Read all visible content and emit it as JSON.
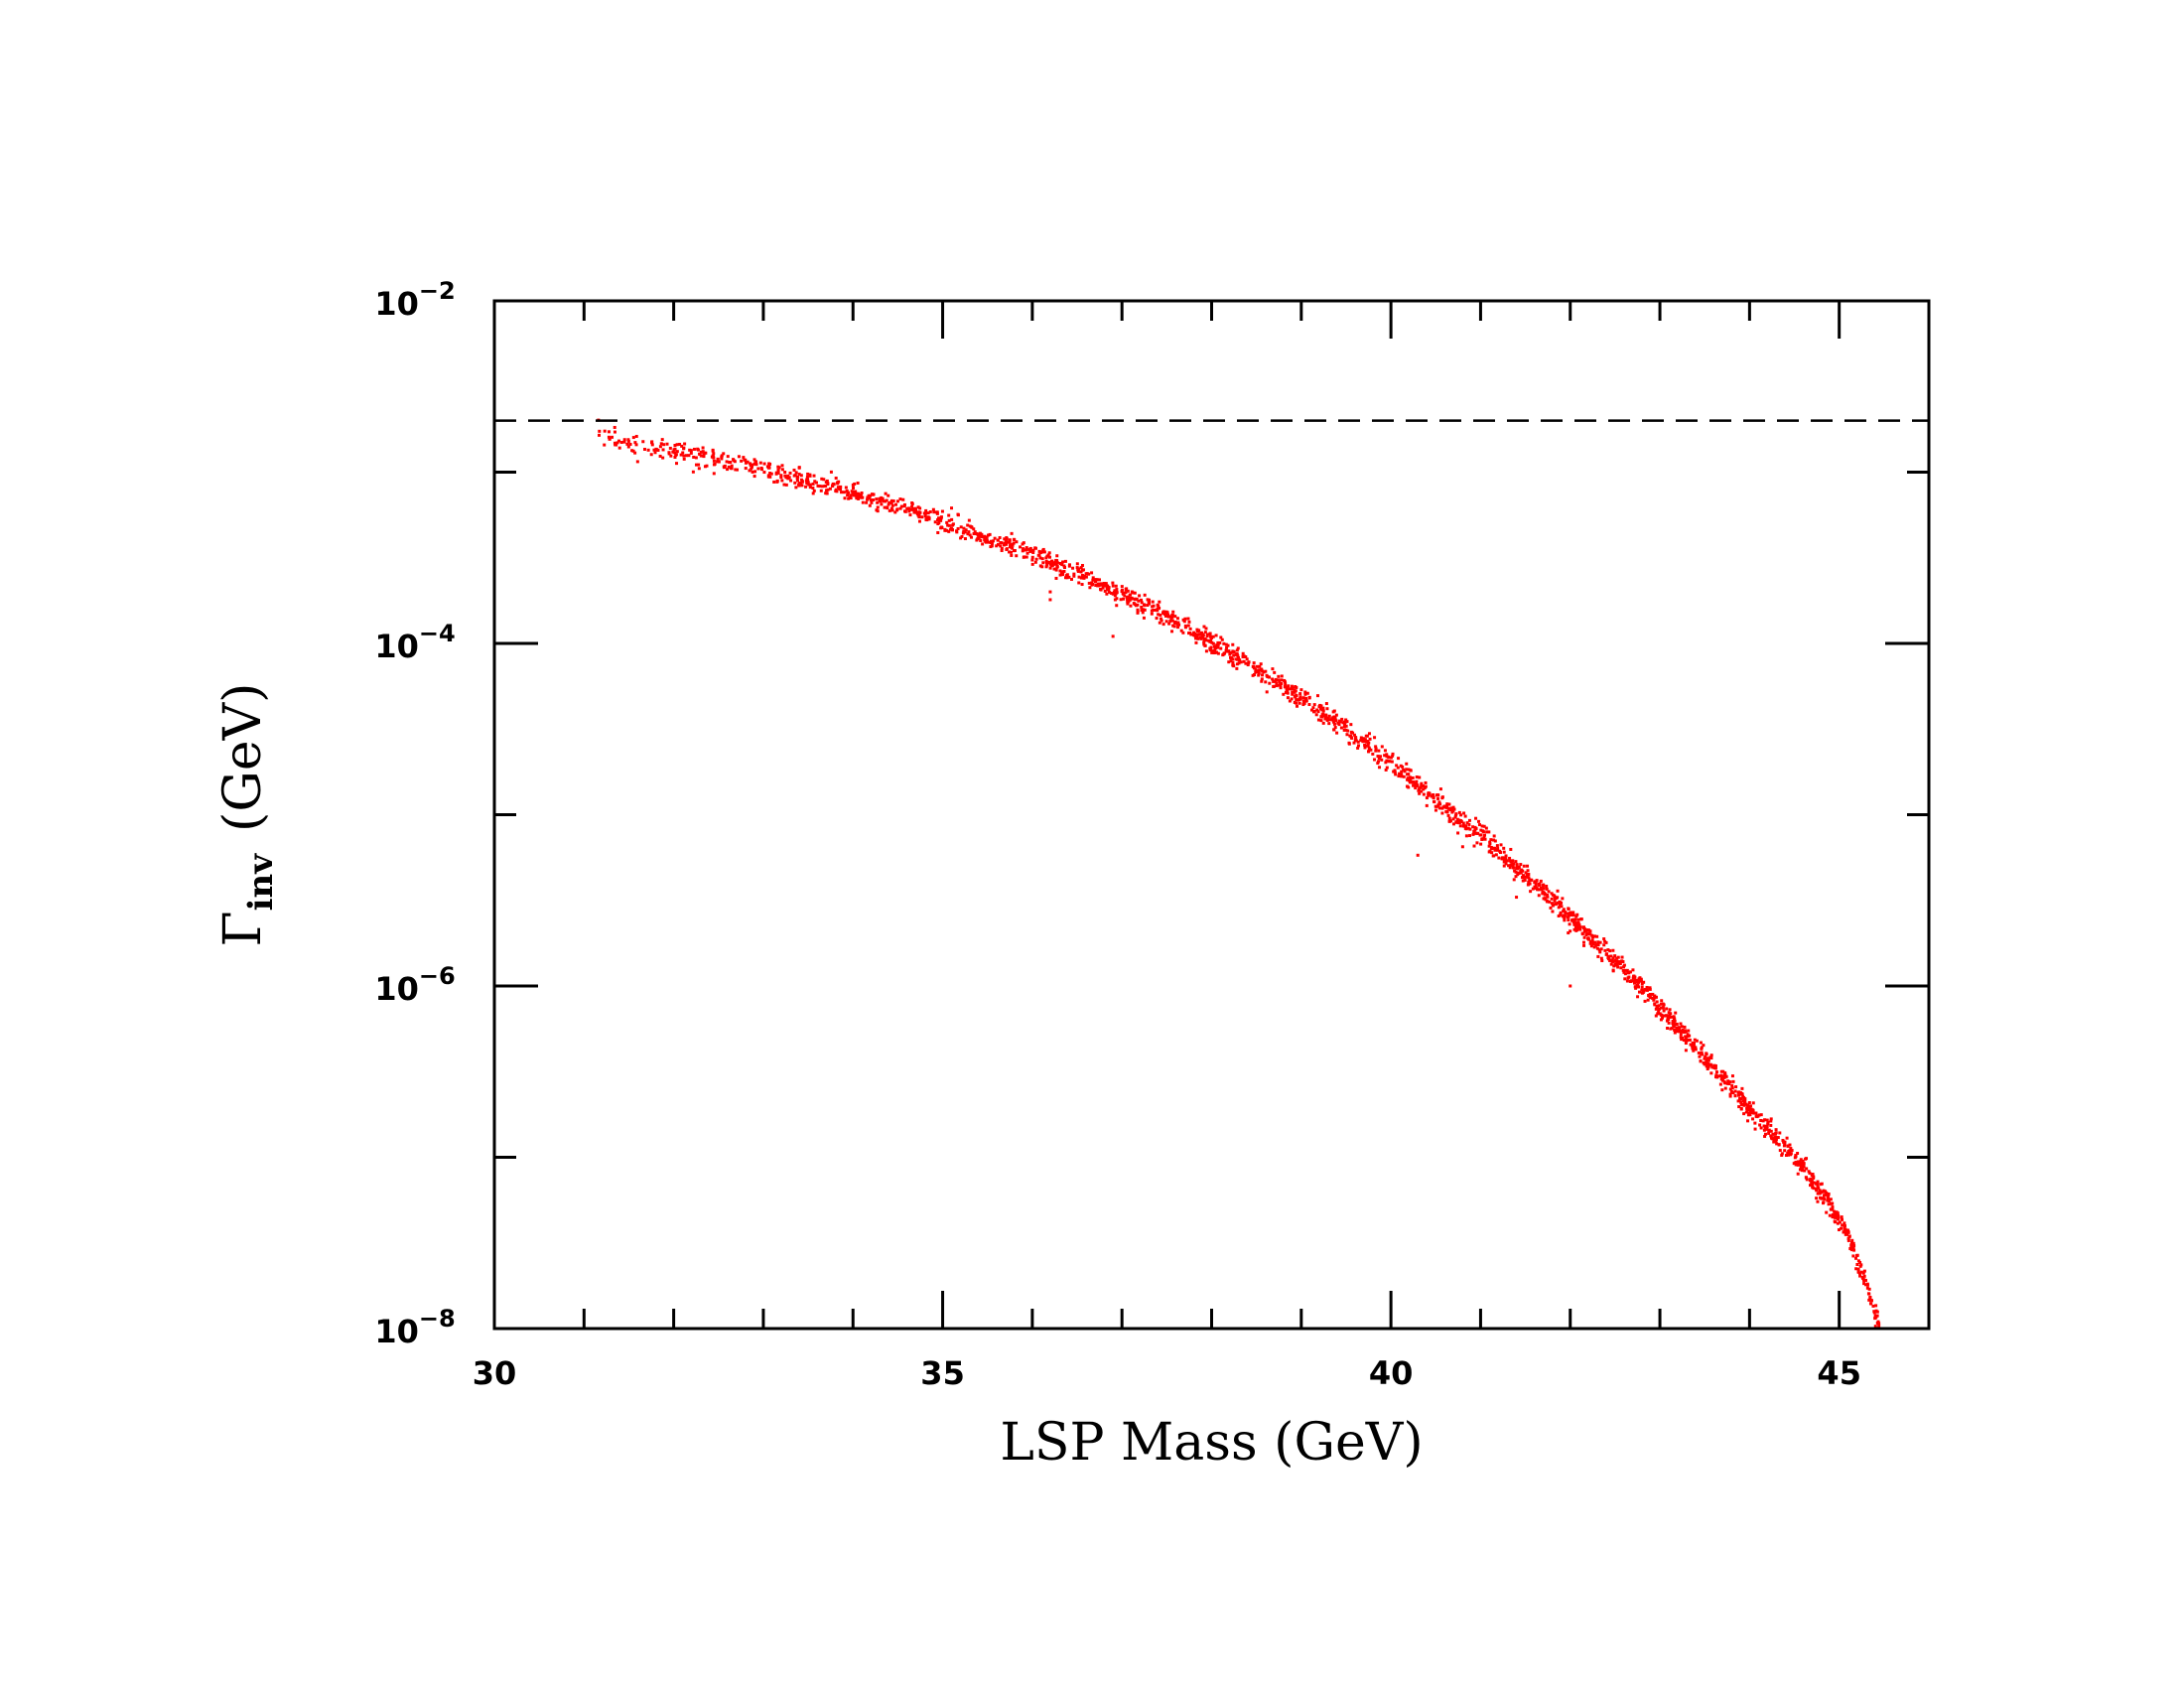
{
  "chart_data": {
    "type": "scatter",
    "title": "",
    "xlabel": "LSP Mass (GeV)",
    "ylabel": {
      "symbol": "Γ",
      "subscript": "inv",
      "unit": "(GeV)"
    },
    "xlim": [
      30,
      46
    ],
    "ylim": [
      1e-08,
      0.01
    ],
    "yscale": "log",
    "grid": false,
    "legend": "none",
    "x_ticks": [
      "30",
      "35",
      "40",
      "45"
    ],
    "y_ticks": [
      {
        "base": "10",
        "exp": "−8",
        "value": 1e-08
      },
      {
        "base": "10",
        "exp": "−6",
        "value": 1e-06
      },
      {
        "base": "10",
        "exp": "−4",
        "value": 0.0001
      },
      {
        "base": "10",
        "exp": "−2",
        "value": 0.01
      }
    ],
    "reference_line": {
      "y": 0.002,
      "style": "dashed",
      "color": "#000000"
    },
    "series": [
      {
        "color": "#ff0000",
        "band_spread_decades": 0.03,
        "x": [
          31.1,
          31.5,
          32.0,
          32.5,
          33.0,
          33.5,
          34.0,
          34.5,
          35.0,
          35.5,
          36.0,
          36.5,
          37.0,
          37.5,
          38.0,
          38.5,
          39.0,
          39.5,
          40.0,
          40.5,
          41.0,
          41.5,
          42.0,
          42.5,
          43.0,
          43.5,
          44.0,
          44.3,
          44.6,
          44.9,
          45.1,
          45.3,
          45.45
        ],
        "y": [
          0.0017,
          0.0015,
          0.00133,
          0.00118,
          0.00104,
          0.00088,
          0.00075,
          0.00063,
          0.00052,
          0.00041,
          0.00033,
          0.00025,
          0.00019,
          0.000145,
          0.0001,
          7e-05,
          4.8e-05,
          3.2e-05,
          2e-05,
          1.2e-05,
          7.5e-06,
          4.5e-06,
          2.5e-06,
          1.4e-06,
          7.5e-07,
          3.8e-07,
          1.9e-07,
          1.3e-07,
          8.5e-08,
          5.3e-08,
          3.5e-08,
          1.8e-08,
          1e-08
        ],
        "outliers": [
          {
            "x": 36.2,
            "y": 0.00018
          },
          {
            "x": 36.2,
            "y": 0.0002
          },
          {
            "x": 36.9,
            "y": 0.00011
          },
          {
            "x": 40.3,
            "y": 5.8e-06
          },
          {
            "x": 40.8,
            "y": 6.5e-06
          },
          {
            "x": 41.4,
            "y": 3.3e-06
          },
          {
            "x": 42.0,
            "y": 1e-06
          },
          {
            "x": 42.6,
            "y": 1.2e-06
          },
          {
            "x": 43.3,
            "y": 4.8e-07
          }
        ]
      }
    ]
  }
}
